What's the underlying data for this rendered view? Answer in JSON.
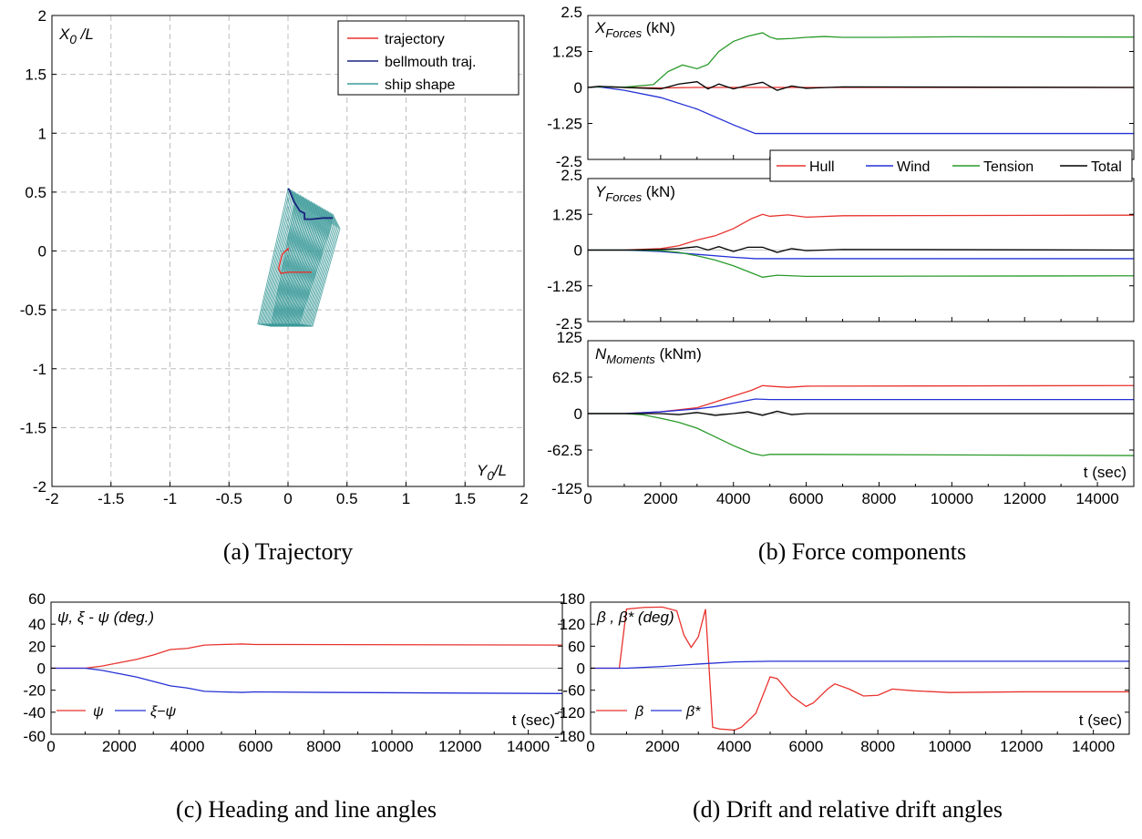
{
  "colors": {
    "red": "#e8332e",
    "blue": "#2430d6",
    "green": "#2a9a2a",
    "black": "#000000",
    "teal": "#3b9a99",
    "navy": "#1a237e"
  },
  "captions": {
    "a": "(a) Trajectory",
    "b": "(b) Force components",
    "c": "(c) Heading and line angles",
    "d": "(d) Drift and relative drift angles"
  },
  "chart_data": [
    {
      "id": "a",
      "type": "line",
      "ylabel": "X0/L",
      "xlabel": "Y0/L",
      "xlim": [
        -2,
        2
      ],
      "ylim": [
        -2,
        2
      ],
      "xticks": [
        "-2",
        "-1.5",
        "-1",
        "-0.5",
        "0",
        "0.5",
        "1",
        "1.5",
        "2"
      ],
      "yticks": [
        "2",
        "1.5",
        "1",
        "0.5",
        "0",
        "-0.5",
        "-1",
        "-1.5",
        "-2"
      ],
      "grid": true,
      "legend_position": "top-right",
      "series": [
        {
          "name": "trajectory",
          "color": "red",
          "points": [
            [
              0.0,
              0.0
            ],
            [
              0.0,
              0.02
            ],
            [
              -0.05,
              -0.03
            ],
            [
              -0.08,
              -0.15
            ],
            [
              -0.06,
              -0.19
            ],
            [
              0.0,
              -0.18
            ],
            [
              0.1,
              -0.18
            ],
            [
              0.2,
              -0.18
            ]
          ]
        },
        {
          "name": "bellmouth traj.",
          "color": "navy",
          "points": [
            [
              0.0,
              0.53
            ],
            [
              0.01,
              0.52
            ],
            [
              0.05,
              0.42
            ],
            [
              0.1,
              0.34
            ],
            [
              0.14,
              0.32
            ],
            [
              0.14,
              0.27
            ],
            [
              0.2,
              0.27
            ],
            [
              0.3,
              0.28
            ],
            [
              0.38,
              0.28
            ]
          ]
        },
        {
          "name": "ship shape",
          "color": "teal",
          "points": []
        }
      ]
    },
    {
      "id": "b1",
      "type": "line",
      "ylabel": "X_Forces (kN)",
      "xlim": [
        0,
        15000
      ],
      "ylim": [
        -2.5,
        2.5
      ],
      "yticks": [
        "2.5",
        "1.25",
        "0",
        "-1.25",
        "-2.5"
      ],
      "series": [
        {
          "name": "Hull",
          "color": "red",
          "x": [
            0,
            300,
            1000,
            2000,
            3000,
            4500,
            6000,
            15000
          ],
          "y": [
            0,
            0.03,
            0,
            -0.02,
            0,
            0,
            0,
            0
          ]
        },
        {
          "name": "Wind",
          "color": "blue",
          "x": [
            0,
            300,
            1000,
            2000,
            3000,
            4000,
            4600,
            5000,
            15000
          ],
          "y": [
            0,
            0.02,
            -0.1,
            -0.35,
            -0.75,
            -1.3,
            -1.6,
            -1.6,
            -1.6
          ]
        },
        {
          "name": "Tension",
          "color": "green",
          "x": [
            0,
            300,
            1000,
            1800,
            2200,
            2600,
            3000,
            3300,
            3600,
            4000,
            4400,
            4800,
            5000,
            5200,
            5600,
            6000,
            6500,
            7000,
            8000,
            10000,
            15000
          ],
          "y": [
            0,
            0.03,
            0.01,
            0.1,
            0.55,
            0.78,
            0.65,
            0.8,
            1.25,
            1.6,
            1.78,
            1.9,
            1.75,
            1.68,
            1.7,
            1.74,
            1.77,
            1.74,
            1.74,
            1.76,
            1.75
          ]
        },
        {
          "name": "Total",
          "color": "black",
          "x": [
            0,
            300,
            1000,
            2000,
            2500,
            3000,
            3300,
            3600,
            4000,
            4400,
            4800,
            5200,
            5600,
            6000,
            7000,
            15000
          ],
          "y": [
            0,
            0.04,
            0,
            -0.05,
            0.12,
            0.2,
            -0.05,
            0.12,
            -0.05,
            0.08,
            0.18,
            -0.1,
            0.05,
            -0.03,
            0.02,
            0
          ]
        }
      ]
    },
    {
      "id": "b2",
      "type": "line",
      "ylabel": "Y_Forces (kN)",
      "xlim": [
        0,
        15000
      ],
      "ylim": [
        -2.5,
        2.5
      ],
      "yticks": [
        "2.5",
        "1.25",
        "0",
        "-1.25",
        "-2.5"
      ],
      "legend": [
        "Hull",
        "Wind",
        "Tension",
        "Total"
      ],
      "legend_position": "top-right",
      "series": [
        {
          "name": "Hull",
          "color": "red",
          "x": [
            0,
            1000,
            2000,
            2500,
            3000,
            3500,
            4000,
            4500,
            4800,
            5000,
            5500,
            6000,
            7000,
            15000
          ],
          "y": [
            0,
            0,
            0.05,
            0.15,
            0.35,
            0.5,
            0.75,
            1.1,
            1.25,
            1.18,
            1.23,
            1.15,
            1.2,
            1.22
          ]
        },
        {
          "name": "Wind",
          "color": "blue",
          "x": [
            0,
            1000,
            2000,
            3000,
            4000,
            4600,
            5000,
            15000
          ],
          "y": [
            0,
            0,
            -0.05,
            -0.15,
            -0.25,
            -0.3,
            -0.3,
            -0.3
          ]
        },
        {
          "name": "Tension",
          "color": "green",
          "x": [
            0,
            1000,
            2000,
            2500,
            3000,
            3500,
            4000,
            4500,
            4800,
            5200,
            6000,
            15000
          ],
          "y": [
            0,
            0,
            -0.02,
            -0.08,
            -0.2,
            -0.35,
            -0.55,
            -0.8,
            -0.95,
            -0.88,
            -0.92,
            -0.9
          ]
        },
        {
          "name": "Total",
          "color": "black",
          "x": [
            0,
            1000,
            2000,
            2500,
            3000,
            3300,
            3600,
            4000,
            4400,
            4800,
            5200,
            5600,
            6000,
            7000,
            15000
          ],
          "y": [
            0,
            0,
            0.02,
            0.05,
            0.12,
            0.0,
            0.12,
            -0.05,
            0.1,
            0.1,
            -0.08,
            0.05,
            -0.02,
            0.02,
            0
          ]
        }
      ]
    },
    {
      "id": "b3",
      "type": "line",
      "ylabel": "N_Moments (kNm)",
      "xlabel": "t (sec)",
      "xlim": [
        0,
        15000
      ],
      "ylim": [
        -125,
        125
      ],
      "xticks": [
        "0",
        "2000",
        "4000",
        "6000",
        "8000",
        "10000",
        "12000",
        "14000"
      ],
      "yticks": [
        "125",
        "62.5",
        "0",
        "-62.5",
        "-125"
      ],
      "series": [
        {
          "name": "Hull",
          "color": "red",
          "x": [
            0,
            1000,
            2000,
            3000,
            3500,
            4000,
            4500,
            4800,
            5000,
            5500,
            6000,
            15000
          ],
          "y": [
            0,
            0,
            3,
            10,
            20,
            30,
            40,
            48,
            47,
            45,
            47,
            48
          ]
        },
        {
          "name": "Wind",
          "color": "blue",
          "x": [
            0,
            1000,
            2000,
            3000,
            3500,
            4000,
            4600,
            5000,
            6000,
            15000
          ],
          "y": [
            0,
            0,
            3,
            8,
            12,
            18,
            25,
            24,
            24,
            24
          ]
        },
        {
          "name": "Tension",
          "color": "green",
          "x": [
            0,
            1000,
            1500,
            2000,
            2500,
            3000,
            3500,
            4000,
            4500,
            4800,
            5000,
            6000,
            15000
          ],
          "y": [
            0,
            0,
            -2,
            -8,
            -15,
            -25,
            -40,
            -55,
            -68,
            -72,
            -70,
            -70,
            -72
          ]
        },
        {
          "name": "Total",
          "color": "black",
          "x": [
            0,
            1000,
            2000,
            2500,
            3000,
            3500,
            4000,
            4400,
            4800,
            5200,
            5600,
            6000,
            7000,
            15000
          ],
          "y": [
            0,
            0,
            0,
            -2,
            2,
            -3,
            0,
            3,
            -3,
            4,
            -2,
            0,
            0,
            0
          ]
        }
      ]
    },
    {
      "id": "c",
      "type": "line",
      "ylabel": "ψ, ξ - ψ (deg.)",
      "xlabel": "t (sec)",
      "xlim": [
        0,
        15000
      ],
      "ylim": [
        -60,
        60
      ],
      "xticks": [
        "0",
        "2000",
        "4000",
        "6000",
        "8000",
        "10000",
        "12000",
        "14000"
      ],
      "yticks": [
        "60",
        "40",
        "20",
        "0",
        "-20",
        "-40",
        "-60"
      ],
      "legend": [
        "ψ",
        "ξ−ψ"
      ],
      "legend_position": "bottom-left",
      "series": [
        {
          "name": "ψ",
          "color": "red",
          "x": [
            0,
            1000,
            1500,
            2000,
            2500,
            3000,
            3500,
            4000,
            4500,
            5000,
            5600,
            6000,
            7000,
            15000
          ],
          "y": [
            0,
            0,
            2,
            5,
            8,
            12,
            17,
            18,
            21,
            21.5,
            22,
            21.5,
            21.5,
            21
          ]
        },
        {
          "name": "ξ−ψ",
          "color": "blue",
          "x": [
            0,
            1000,
            1500,
            2000,
            2500,
            3000,
            3500,
            4000,
            4500,
            5000,
            5600,
            6000,
            8000,
            15000
          ],
          "y": [
            0,
            0,
            -2,
            -5,
            -8,
            -12,
            -16,
            -18,
            -21,
            -21.5,
            -22,
            -21.5,
            -22,
            -23
          ]
        }
      ]
    },
    {
      "id": "d",
      "type": "line",
      "ylabel": "β , β* (deg)",
      "xlabel": "t (sec)",
      "xlim": [
        0,
        15000
      ],
      "ylim": [
        -190,
        190
      ],
      "xticks": [
        "0",
        "2000",
        "4000",
        "6000",
        "8000",
        "10000",
        "12000",
        "14000"
      ],
      "yticks": [
        "180",
        "120",
        "60",
        "0",
        "-60",
        "-120",
        "-180"
      ],
      "legend": [
        "β",
        "β*"
      ],
      "legend_position": "bottom-left",
      "series": [
        {
          "name": "β",
          "color": "red",
          "x": [
            0,
            600,
            800,
            1000,
            1500,
            2000,
            2400,
            2600,
            2800,
            3000,
            3200,
            3400,
            3600,
            4000,
            4200,
            4600,
            5000,
            5200,
            5600,
            6000,
            6200,
            6600,
            6800,
            7200,
            7600,
            8000,
            8400,
            9000,
            10000,
            12000,
            15000
          ],
          "y": [
            0,
            0,
            0,
            170,
            175,
            176,
            165,
            95,
            60,
            90,
            170,
            -170,
            -175,
            -178,
            -170,
            -130,
            -25,
            -30,
            -80,
            -110,
            -100,
            -60,
            -45,
            -60,
            -80,
            -78,
            -60,
            -65,
            -70,
            -68,
            -68
          ]
        },
        {
          "name": "β*",
          "color": "blue",
          "x": [
            0,
            1000,
            2000,
            3000,
            4000,
            5000,
            6000,
            15000
          ],
          "y": [
            0,
            0,
            5,
            12,
            18,
            20,
            20,
            20
          ]
        }
      ]
    }
  ]
}
